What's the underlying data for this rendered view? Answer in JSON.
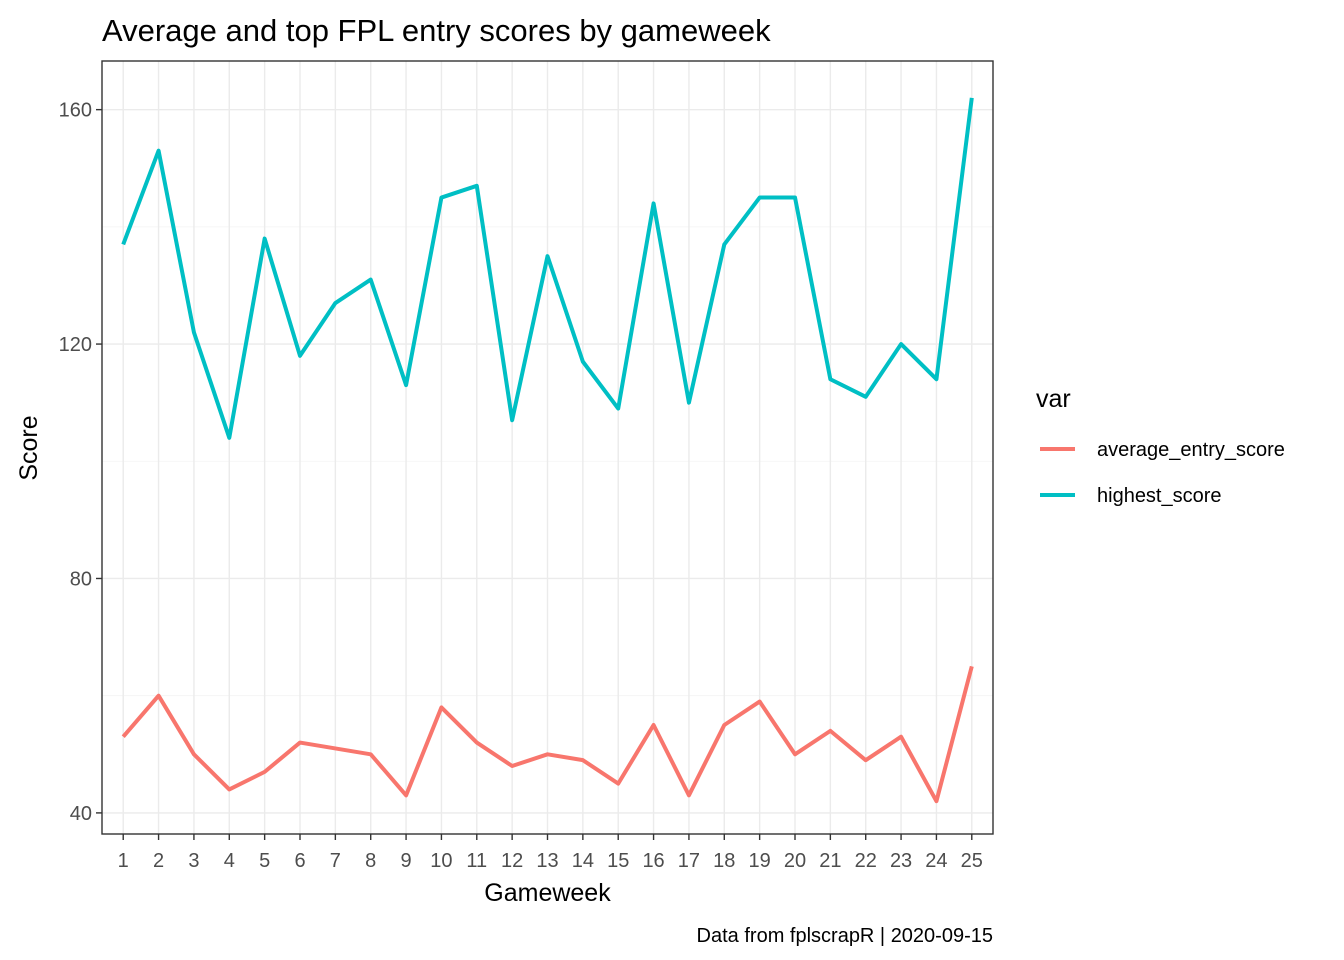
{
  "chart_data": {
    "type": "line",
    "title": "Average and top FPL entry scores by gameweek",
    "xlabel": "Gameweek",
    "ylabel": "Score",
    "caption": "Data from fplscrapR | 2020-09-15",
    "x": [
      1,
      2,
      3,
      4,
      5,
      6,
      7,
      8,
      9,
      10,
      11,
      12,
      13,
      14,
      15,
      16,
      17,
      18,
      19,
      20,
      21,
      22,
      23,
      24,
      25
    ],
    "xlim": [
      0.4,
      25.6
    ],
    "ylim": [
      36.4,
      168.3
    ],
    "yticks": [
      40,
      80,
      120,
      160
    ],
    "grid": true,
    "legend": {
      "title": "var",
      "position": "right"
    },
    "series": [
      {
        "name": "average_entry_score",
        "color": "#F8766D",
        "values": [
          53,
          60,
          50,
          44,
          47,
          52,
          51,
          50,
          43,
          58,
          52,
          48,
          50,
          49,
          45,
          55,
          43,
          55,
          59,
          50,
          54,
          49,
          53,
          42,
          65
        ]
      },
      {
        "name": "highest_score",
        "color": "#00BFC4",
        "values": [
          137,
          153,
          122,
          104,
          138,
          118,
          127,
          131,
          113,
          145,
          147,
          107,
          135,
          117,
          109,
          144,
          110,
          137,
          145,
          145,
          114,
          111,
          120,
          114,
          162
        ]
      }
    ]
  }
}
